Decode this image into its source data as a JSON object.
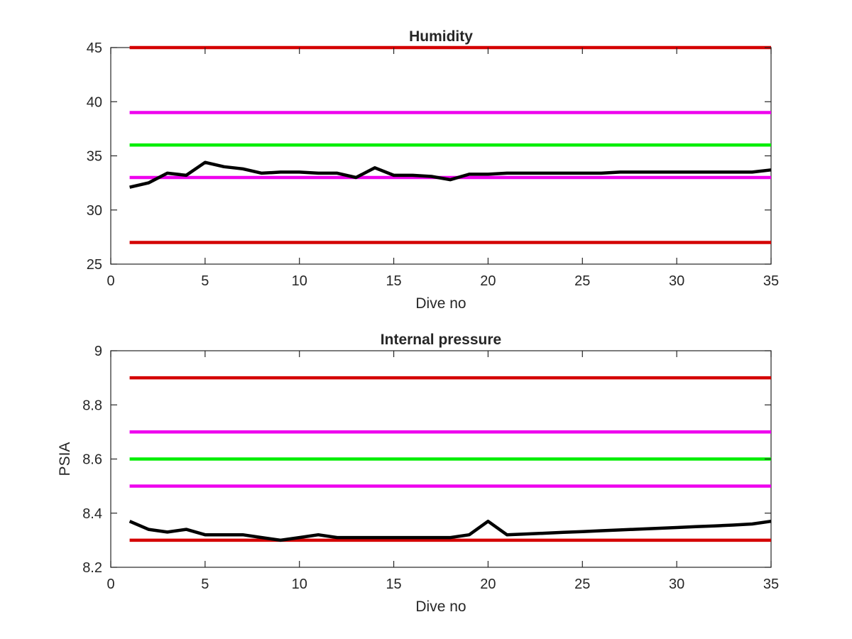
{
  "chart_data": [
    {
      "type": "line",
      "title": "Humidity",
      "xlabel": "Dive no",
      "ylabel": "",
      "xlim": [
        0,
        35
      ],
      "ylim": [
        25,
        45
      ],
      "xticks": [
        "0",
        "5",
        "10",
        "15",
        "20",
        "25",
        "30",
        "35"
      ],
      "yticks": [
        "25",
        "30",
        "35",
        "40",
        "45"
      ],
      "grid": false,
      "reference_lines": [
        {
          "y": 45,
          "color": "#d40000"
        },
        {
          "y": 39,
          "color": "#ee00ee"
        },
        {
          "y": 36,
          "color": "#00ee00"
        },
        {
          "y": 33,
          "color": "#ee00ee"
        },
        {
          "y": 27,
          "color": "#d40000"
        }
      ],
      "series": [
        {
          "color": "#000000",
          "x": [
            1,
            2,
            3,
            4,
            5,
            6,
            7,
            8,
            9,
            10,
            11,
            12,
            13,
            14,
            15,
            16,
            17,
            18,
            19,
            20,
            21,
            22,
            23,
            24,
            25,
            26,
            27,
            28,
            29,
            30,
            31,
            32,
            33,
            34,
            35
          ],
          "values": [
            32.1,
            32.5,
            33.4,
            33.2,
            34.4,
            34.0,
            33.8,
            33.4,
            33.5,
            33.5,
            33.4,
            33.4,
            33.0,
            33.9,
            33.2,
            33.2,
            33.1,
            32.8,
            33.3,
            33.3,
            33.4,
            33.4,
            33.4,
            33.4,
            33.4,
            33.4,
            33.5,
            33.5,
            33.5,
            33.5,
            33.5,
            33.5,
            33.5,
            33.5,
            33.7
          ]
        }
      ]
    },
    {
      "type": "line",
      "title": "Internal pressure",
      "xlabel": "Dive no",
      "ylabel": "PSIA",
      "xlim": [
        0,
        35
      ],
      "ylim": [
        8.2,
        9.0
      ],
      "xticks": [
        "0",
        "5",
        "10",
        "15",
        "20",
        "25",
        "30",
        "35"
      ],
      "yticks": [
        "8.2",
        "8.4",
        "8.6",
        "8.8",
        "9"
      ],
      "grid": false,
      "reference_lines": [
        {
          "y": 8.9,
          "color": "#d40000"
        },
        {
          "y": 8.7,
          "color": "#ee00ee"
        },
        {
          "y": 8.6,
          "color": "#00ee00"
        },
        {
          "y": 8.5,
          "color": "#ee00ee"
        },
        {
          "y": 8.3,
          "color": "#d40000"
        }
      ],
      "series": [
        {
          "color": "#000000",
          "x": [
            1,
            2,
            3,
            4,
            5,
            6,
            7,
            8,
            9,
            10,
            11,
            12,
            13,
            14,
            15,
            16,
            17,
            18,
            19,
            20,
            21,
            22,
            23,
            24,
            25,
            26,
            27,
            28,
            29,
            30,
            31,
            32,
            33,
            34,
            35
          ],
          "values": [
            8.37,
            8.34,
            8.33,
            8.34,
            8.32,
            8.32,
            8.32,
            8.31,
            8.3,
            8.31,
            8.32,
            8.31,
            8.31,
            8.31,
            8.31,
            8.31,
            8.31,
            8.31,
            8.32,
            8.37,
            8.32,
            8.323,
            8.326,
            8.329,
            8.332,
            8.335,
            8.338,
            8.341,
            8.344,
            8.347,
            8.35,
            8.353,
            8.356,
            8.36,
            8.37
          ]
        }
      ]
    }
  ]
}
